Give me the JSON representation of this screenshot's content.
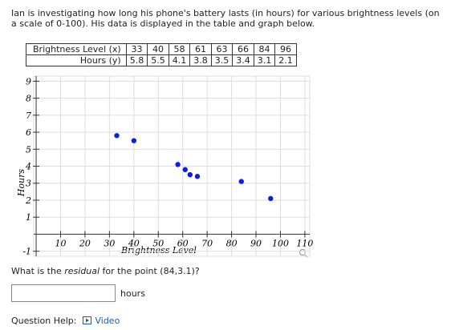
{
  "question": {
    "intro": "Ian is investigating how long his phone's battery lasts (in hours) for various brightness levels (on a scale of 0-100). His data is displayed in the table and graph below.",
    "prompt_before": "What is the ",
    "prompt_emphasis": "residual",
    "prompt_after": " for the point (84,3.1)?",
    "units": "hours",
    "help_label": "Question Help:",
    "help_link": "Video"
  },
  "table": {
    "rows": [
      [
        "Brightness Level (x)",
        33,
        40,
        58,
        61,
        63,
        66,
        84,
        96
      ],
      [
        "Hours (y)",
        5.8,
        5.5,
        4.1,
        3.8,
        3.5,
        3.4,
        3.1,
        2.1
      ]
    ]
  },
  "graph": {
    "type": "scatter",
    "x_label": "Brightness Level",
    "y_label": "Hours",
    "x": [
      33,
      40,
      58,
      61,
      63,
      66,
      84,
      96
    ],
    "y": [
      5.8,
      5.5,
      4.1,
      3.8,
      3.5,
      3.4,
      3.1,
      2.1
    ],
    "color": "#0a1ee6",
    "xlim": [
      -1,
      112
    ],
    "ylim": [
      -1.3,
      9.3
    ],
    "xticks": [
      10,
      20,
      30,
      40,
      50,
      60,
      70,
      80,
      90,
      100,
      110
    ],
    "yticks": [
      -1,
      1,
      2,
      3,
      4,
      5,
      6,
      7,
      8,
      9
    ],
    "grid": true
  }
}
